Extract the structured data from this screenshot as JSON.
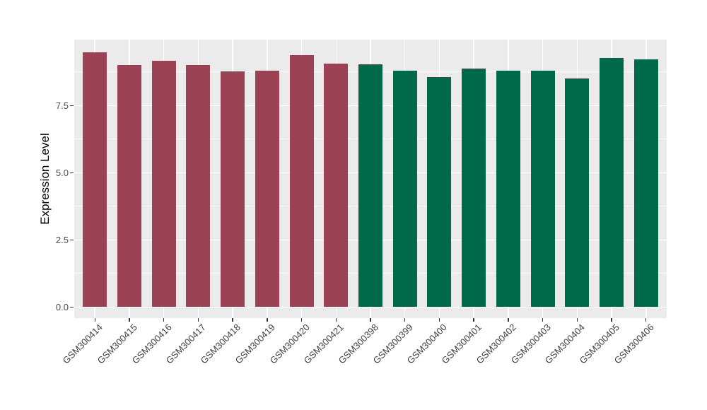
{
  "chart_data": {
    "type": "bar",
    "title": "",
    "xlabel": "",
    "ylabel": "Expression Level",
    "categories": [
      "GSM300414",
      "GSM300415",
      "GSM300416",
      "GSM300417",
      "GSM300418",
      "GSM300419",
      "GSM300420",
      "GSM300421",
      "GSM300398",
      "GSM300399",
      "GSM300400",
      "GSM300401",
      "GSM300402",
      "GSM300403",
      "GSM300404",
      "GSM300405",
      "GSM300406"
    ],
    "values": [
      9.47,
      9.0,
      9.16,
      9.0,
      8.78,
      8.8,
      9.38,
      9.07,
      9.04,
      8.8,
      8.57,
      8.89,
      8.79,
      8.79,
      8.51,
      9.28,
      9.22
    ],
    "groups": [
      "A",
      "A",
      "A",
      "A",
      "A",
      "A",
      "A",
      "A",
      "B",
      "B",
      "B",
      "B",
      "B",
      "B",
      "B",
      "B",
      "B"
    ],
    "group_colors": {
      "A": "#9B4354",
      "B": "#00694A"
    },
    "yticks": [
      0.0,
      2.5,
      5.0,
      7.5
    ],
    "ytick_labels": [
      "0.0",
      "2.5",
      "5.0",
      "7.5"
    ],
    "minor_yticks": [
      1.25,
      3.75,
      6.25,
      8.75
    ],
    "ylim": [
      -0.45,
      9.95
    ],
    "grid": true,
    "legend_position": "none",
    "panel_background": "#EBEBEB",
    "gridline_color": "#FFFFFF",
    "tick_color": "#333333",
    "tick_label_color": "#4D4D4D",
    "axis_title_color": "#000000"
  }
}
